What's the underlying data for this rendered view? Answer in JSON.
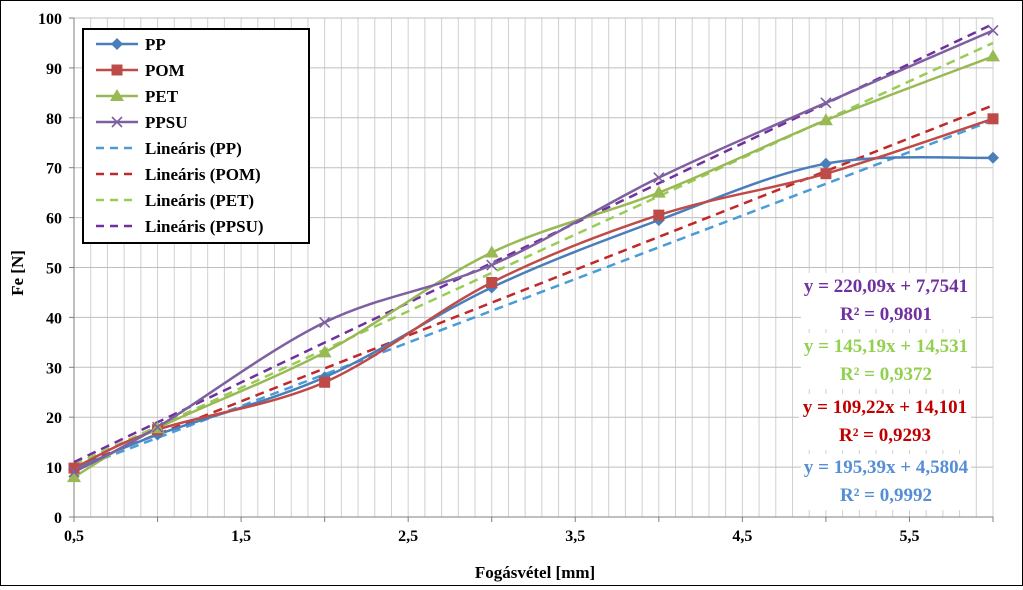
{
  "chart_data": {
    "type": "line",
    "xlabel": "Fogásvétel [mm]",
    "ylabel": "Fe [N]",
    "xlim": [
      0.5,
      6
    ],
    "ylim": [
      0,
      100
    ],
    "x_ticks": [
      "0,5",
      "1,5",
      "2,5",
      "3,5",
      "4,5",
      "5,5"
    ],
    "x_tick_values": [
      0.5,
      1.5,
      2.5,
      3.5,
      4.5,
      5.5
    ],
    "y_ticks": [
      "0",
      "10",
      "20",
      "30",
      "40",
      "50",
      "60",
      "70",
      "80",
      "90",
      "100"
    ],
    "y_tick_values": [
      0,
      10,
      20,
      30,
      40,
      50,
      60,
      70,
      80,
      90,
      100
    ],
    "grid": true,
    "legend_position": "top-left",
    "series": [
      {
        "name": "PP",
        "color": "#4a7ebb",
        "marker": "diamond",
        "x": [
          0.5,
          1,
          2,
          3,
          4,
          5,
          6
        ],
        "y": [
          9.5,
          16.5,
          28,
          46,
          59.5,
          70.8,
          72
        ]
      },
      {
        "name": "POM",
        "color": "#be4b48",
        "marker": "square",
        "x": [
          0.5,
          1,
          2,
          3,
          4,
          5,
          6
        ],
        "y": [
          9.8,
          17.5,
          27,
          47,
          60.5,
          68.8,
          79.8
        ]
      },
      {
        "name": "PET",
        "color": "#98b954",
        "marker": "triangle",
        "x": [
          0.5,
          1,
          2,
          3,
          4,
          5,
          6
        ],
        "y": [
          8,
          17.8,
          33,
          53,
          65,
          79.5,
          92.3
        ]
      },
      {
        "name": "PPSU",
        "color": "#7d60a0",
        "marker": "x",
        "x": [
          0.5,
          1,
          2,
          3,
          4,
          5,
          6
        ],
        "y": [
          9,
          18,
          39,
          50.5,
          68,
          83,
          97.5
        ]
      }
    ],
    "trendlines": [
      {
        "name": "Lineáris (PP)",
        "color": "#4a9bd6",
        "x": [
          0.5,
          6
        ],
        "y": [
          9.5,
          79.5
        ]
      },
      {
        "name": "Lineáris (POM)",
        "color": "#c0282a",
        "x": [
          0.5,
          6
        ],
        "y": [
          10,
          82.5
        ]
      },
      {
        "name": "Lineáris (PET)",
        "color": "#99cc55",
        "x": [
          0.5,
          6
        ],
        "y": [
          10.5,
          95
        ]
      },
      {
        "name": "Lineáris (PPSU)",
        "color": "#7030a0",
        "x": [
          0.5,
          6
        ],
        "y": [
          11,
          98.8
        ]
      }
    ],
    "equations": [
      {
        "equation": "y = 220,09x + 7,7541",
        "r2": "R² = 0,9801",
        "color": "#7030a0"
      },
      {
        "equation": "y = 145,19x + 14,531",
        "r2": "R² = 0,9372",
        "color": "#92d050"
      },
      {
        "equation": "y = 109,22x + 14,101",
        "r2": "R² = 0,9293",
        "color": "#c00000"
      },
      {
        "equation": "y = 195,39x + 4,5804",
        "r2": "R² = 0,9992",
        "color": "#558ed5"
      }
    ]
  }
}
